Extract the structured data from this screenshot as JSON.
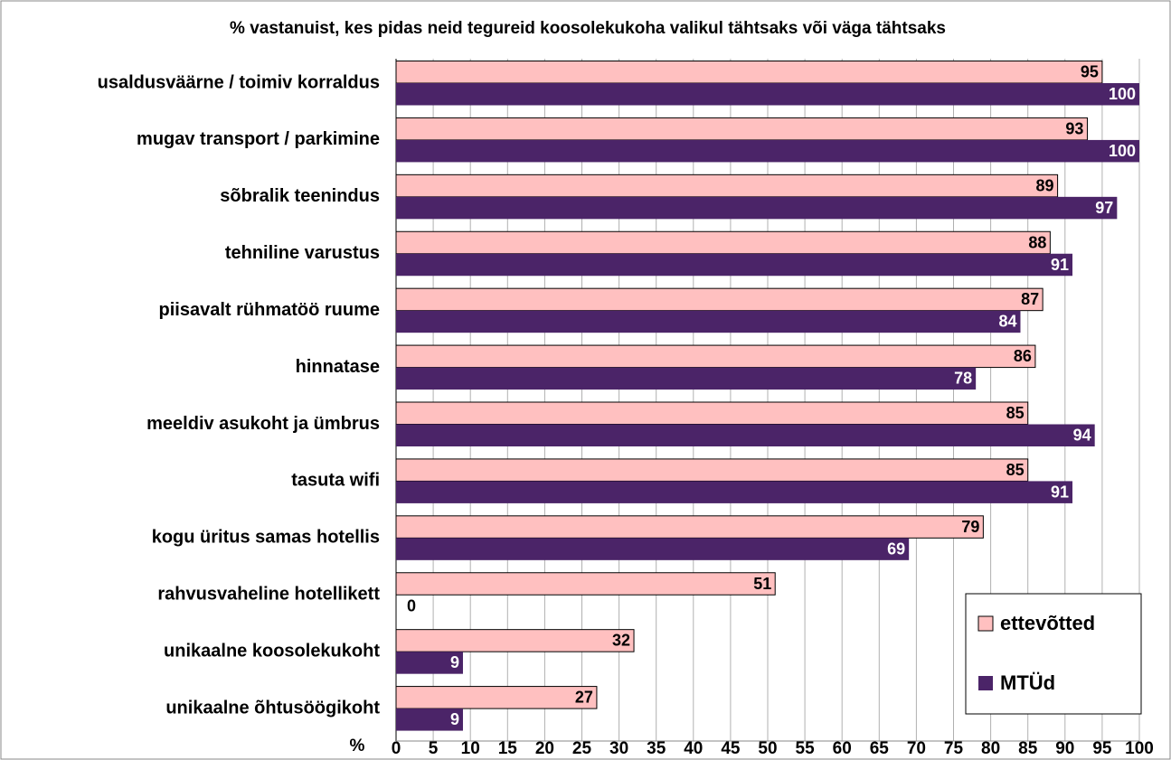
{
  "chart_data": {
    "type": "bar",
    "orientation": "horizontal",
    "title": "% vastanuist, kes pidas neid tegureid koosolekukoha valikul tähtsaks või väga tähtsaks",
    "x_label": "%",
    "categories": [
      "usaldusväärne / toimiv korraldus",
      "mugav transport / parkimine",
      "sõbralik teenindus",
      "tehniline varustus",
      "piisavalt rühmatöö ruume",
      "hinnatase",
      "meeldiv asukoht ja ümbrus",
      "tasuta wifi",
      "kogu üritus samas hotellis",
      "rahvusvaheline hotellikett",
      "unikaalne koosolekukoht",
      "unikaalne õhtusöögikoht"
    ],
    "series": [
      {
        "name": "ettevõtted",
        "color": "#ffc0c0",
        "values": [
          95,
          93,
          89,
          88,
          87,
          86,
          85,
          85,
          79,
          51,
          32,
          27
        ]
      },
      {
        "name": "MTÜd",
        "color": "#4b2468",
        "values": [
          100,
          100,
          97,
          91,
          84,
          78,
          94,
          91,
          69,
          0,
          9,
          9
        ]
      }
    ],
    "xlim": [
      0,
      100
    ],
    "xticks": [
      0,
      5,
      10,
      15,
      20,
      25,
      30,
      35,
      40,
      45,
      50,
      55,
      60,
      65,
      70,
      75,
      80,
      85,
      90,
      95,
      100
    ],
    "grid": true,
    "legend": "bottom-right"
  }
}
